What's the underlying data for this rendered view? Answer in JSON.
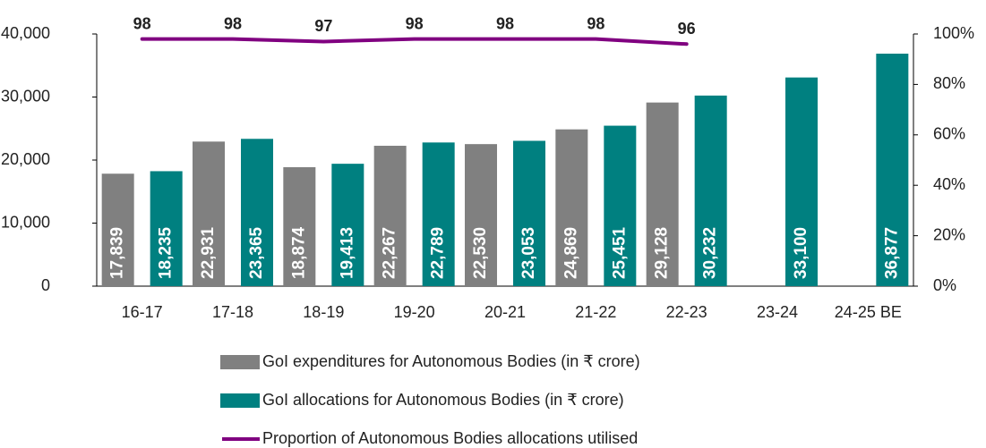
{
  "chart_data": {
    "type": "bar",
    "categories": [
      "16-17",
      "17-18",
      "18-19",
      "19-20",
      "20-21",
      "21-22",
      "22-23",
      "23-24",
      "24-25 BE"
    ],
    "series": [
      {
        "name": "GoI expenditures for Autonomous Bodies (in ₹ crore)",
        "color": "#808080",
        "values": [
          17839,
          22931,
          18874,
          22267,
          22530,
          24869,
          29128,
          null,
          null
        ],
        "value_labels": [
          "17,839",
          "22,931",
          "18,874",
          "22,267",
          "22,530",
          "24,869",
          "29,128",
          null,
          null
        ]
      },
      {
        "name": "GoI allocations for Autonomous Bodies (in ₹ crore)",
        "color": "#008080",
        "values": [
          18235,
          23365,
          19413,
          22789,
          23053,
          25451,
          30232,
          33100,
          36877
        ],
        "value_labels": [
          "18,235",
          "23,365",
          "19,413",
          "22,789",
          "23,053",
          "25,451",
          "30,232",
          "33,100",
          "36,877"
        ]
      },
      {
        "name": "Proportion of Autonomous Bodies allocations utilised",
        "color": "#800080",
        "type": "line",
        "axis": "y2",
        "values": [
          98,
          98,
          97,
          98,
          98,
          98,
          96,
          null,
          null
        ]
      }
    ],
    "ylim": [
      0,
      40000
    ],
    "yticks": [
      0,
      {
        "value": 10000,
        "label": "10,000"
      },
      {
        "value": 20000,
        "label": "20,000"
      },
      {
        "value": 30000,
        "label": "30,000"
      },
      {
        "value": 40000,
        "label": "40,000"
      }
    ],
    "y2lim": [
      0,
      100
    ],
    "y2ticks": [
      {
        "value": 0,
        "label": "0%"
      },
      {
        "value": 20,
        "label": "20%"
      },
      {
        "value": 40,
        "label": "40%"
      },
      {
        "value": 60,
        "label": "60%"
      },
      {
        "value": 80,
        "label": "80%"
      },
      {
        "value": 100,
        "label": "100%"
      }
    ],
    "grid": false,
    "legend": "bottom"
  }
}
